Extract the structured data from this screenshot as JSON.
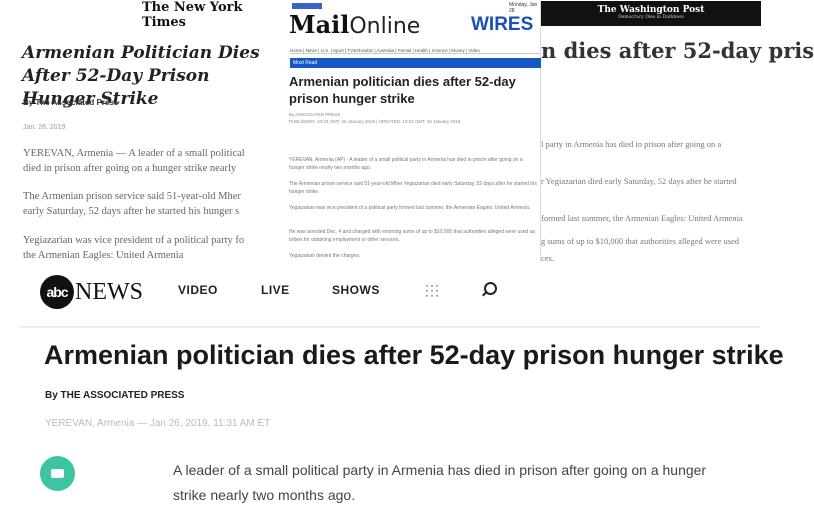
{
  "nyt": {
    "logo": "The New York Times",
    "headline": "Armenian Politician Dies After 52-Day Prison Hunger Strike",
    "byline": "By The Associated Press",
    "date": "Jan. 26, 2019",
    "paragraphs": [
      "YEREVAN, Armenia — A leader of a small political",
      "died in prison after going on a hunger strike nearly",
      "The Armenian prison service said 51-year-old Mher",
      "early Saturday, 52 days after he started his hunger s",
      "Yegiazarian was vice president of a political party fo",
      "the Armenian Eagles: United Armenia"
    ]
  },
  "mail": {
    "logo_bold": "Mail",
    "logo_light": "Online",
    "wires": "WIRES",
    "date": "Monday, Jan 28",
    "nav": "Home | News | U.S. | Sport | TV&Showbiz | Australia | Femail | Health | Science | Money | Video",
    "bar": "Most Read",
    "headline": "Armenian politician dies after 52-day prison hunger strike",
    "byline": "By ASSOCIATED PRESS",
    "published": "PUBLISHED: 10:23 GMT, 26 January 2019 | UPDATED: 10:23 GMT, 26 January 2019",
    "paragraphs": [
      "YEREVAN, Armenia (AP) - A leader of a small political party in Armenia has died in prison after going on a hunger strike nearly two months ago.",
      "The Armenian prison service said 51-year-old Mher Yegiazarian died early Saturday, 52 days after he started his hunger strike.",
      "Yegiazarian was vice president of a political party formed last summer, the Armenian Eagles: United Armenia.",
      "He was arrested Dec. 4 and charged with extorting sums of up to $10,000 that authorities alleged were used as bribes for obtaining employment or other services.",
      "Yegiazarian denied the charges."
    ]
  },
  "wapo": {
    "logo": "The Washington Post",
    "tagline": "Democracy Dies in Darkness",
    "headline": "n dies after 52-day pris",
    "paragraphs": [
      "l party in Armenia has died in prison after going on a",
      "r Yegiazarian died early Saturday, 52 days after he started",
      "formed last summer, the Armenian Eagles: United Armenia",
      "g sums of up to $10,000 that authorities alleged were used",
      "ces."
    ]
  },
  "abc": {
    "logo_circle": "abc",
    "logo_text": "NEWS",
    "nav": [
      "VIDEO",
      "LIVE",
      "SHOWS"
    ],
    "headline": "Armenian politician dies after 52-day prison hunger strike",
    "byline": "By THE ASSOCIATED PRESS",
    "dateline": "YEREVAN, Armenia — Jan 26, 2019, 11:31 AM ET",
    "body_lines": [
      "A leader of a small political party in Armenia has died in prison after going on a hunger",
      "strike nearly two months ago."
    ],
    "accent": "#3cc4a3"
  }
}
